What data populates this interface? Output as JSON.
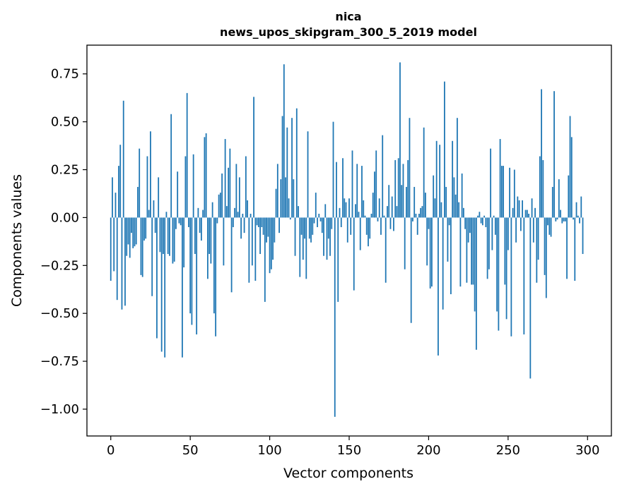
{
  "chart_data": {
    "type": "bar",
    "title_line1": "nica",
    "title_line2": "news_upos_skipgram_300_5_2019 model",
    "xlabel": "Vector components",
    "ylabel": "Components values",
    "xlim": [
      -15,
      315
    ],
    "ylim": [
      -1.14,
      0.9
    ],
    "xticks": [
      0,
      50,
      100,
      150,
      200,
      250,
      300
    ],
    "xtick_labels": [
      "0",
      "50",
      "100",
      "150",
      "200",
      "250",
      "300"
    ],
    "yticks": [
      -1.0,
      -0.75,
      -0.5,
      -0.25,
      0.0,
      0.25,
      0.5,
      0.75
    ],
    "ytick_labels": [
      "−1.00",
      "−0.75",
      "−0.50",
      "−0.25",
      "0.00",
      "0.25",
      "0.50",
      "0.75"
    ],
    "bar_color": "#1f77b4",
    "values": [
      -0.33,
      0.21,
      -0.28,
      0.13,
      -0.43,
      0.27,
      0.38,
      -0.48,
      0.61,
      -0.46,
      -0.2,
      -0.14,
      -0.21,
      -0.08,
      -0.16,
      -0.15,
      -0.14,
      0.16,
      0.36,
      -0.3,
      -0.31,
      -0.12,
      -0.11,
      0.32,
      0.04,
      0.45,
      -0.41,
      0.09,
      -0.08,
      -0.63,
      0.21,
      -0.18,
      -0.7,
      -0.19,
      -0.73,
      0.03,
      -0.19,
      -0.2,
      0.54,
      -0.24,
      -0.23,
      -0.06,
      0.24,
      -0.03,
      -0.04,
      -0.73,
      -0.26,
      0.32,
      0.65,
      -0.05,
      -0.5,
      -0.56,
      0.33,
      -0.19,
      -0.61,
      0.05,
      -0.08,
      -0.12,
      0.04,
      0.42,
      0.44,
      -0.32,
      -0.19,
      -0.24,
      0.08,
      -0.5,
      -0.62,
      -0.03,
      0.12,
      0.13,
      0.23,
      -0.25,
      0.41,
      0.06,
      0.26,
      0.36,
      -0.39,
      -0.05,
      0.05,
      0.28,
      0.03,
      0.21,
      -0.11,
      0.02,
      -0.08,
      0.32,
      0.09,
      -0.34,
      0.02,
      -0.25,
      0.63,
      -0.33,
      -0.04,
      -0.05,
      -0.19,
      -0.05,
      -0.09,
      -0.44,
      -0.13,
      -0.1,
      -0.29,
      -0.27,
      -0.22,
      -0.13,
      0.15,
      0.28,
      -0.08,
      0.2,
      0.53,
      0.8,
      0.21,
      0.47,
      0.1,
      -0.01,
      0.52,
      0.2,
      -0.2,
      0.57,
      0.06,
      -0.31,
      -0.09,
      -0.22,
      -0.11,
      -0.32,
      0.45,
      -0.11,
      -0.13,
      -0.09,
      -0.03,
      0.13,
      -0.05,
      0.02,
      -0.02,
      -0.08,
      -0.2,
      0.07,
      -0.22,
      -0.11,
      -0.2,
      -0.06,
      0.5,
      -1.04,
      0.29,
      -0.44,
      0.05,
      -0.05,
      0.31,
      0.1,
      0.08,
      -0.13,
      0.1,
      -0.09,
      0.35,
      -0.38,
      0.07,
      0.28,
      0.03,
      -0.17,
      0.27,
      0.09,
      0.01,
      -0.09,
      -0.15,
      -0.11,
      0.02,
      0.13,
      0.24,
      0.35,
      -0.02,
      0.1,
      -0.09,
      0.43,
      0.01,
      -0.34,
      0.06,
      0.17,
      -0.06,
      0.11,
      -0.07,
      0.3,
      0.06,
      0.31,
      0.81,
      0.17,
      0.28,
      -0.27,
      0.16,
      0.3,
      0.52,
      -0.55,
      -0.02,
      0.16,
      0.02,
      -0.09,
      0.02,
      0.05,
      0.06,
      0.47,
      0.13,
      -0.25,
      -0.06,
      -0.37,
      -0.36,
      0.22,
      0.1,
      0.4,
      -0.72,
      0.38,
      0.08,
      -0.48,
      0.71,
      0.16,
      -0.23,
      -0.04,
      -0.4,
      0.4,
      0.21,
      0.12,
      0.52,
      0.08,
      -0.36,
      0.23,
      0.05,
      -0.06,
      -0.34,
      -0.13,
      -0.08,
      -0.35,
      -0.35,
      -0.49,
      -0.69,
      0.01,
      0.03,
      -0.03,
      -0.04,
      0.01,
      -0.05,
      -0.32,
      -0.27,
      0.36,
      -0.17,
      0.01,
      -0.09,
      -0.49,
      -0.59,
      0.41,
      0.27,
      0.27,
      -0.35,
      -0.53,
      -0.17,
      0.26,
      -0.62,
      0.05,
      0.25,
      -0.13,
      0.11,
      0.09,
      -0.07,
      0.09,
      -0.61,
      0.04,
      0.04,
      0.02,
      -0.84,
      0.1,
      -0.13,
      0.05,
      -0.34,
      -0.22,
      0.32,
      0.67,
      0.3,
      -0.3,
      -0.42,
      -0.04,
      -0.09,
      -0.1,
      0.16,
      0.66,
      -0.02,
      -0.01,
      0.2,
      0.04,
      -0.03,
      -0.02,
      -0.02,
      -0.32,
      0.22,
      0.53,
      0.42,
      -0.01,
      -0.33,
      0.08,
      0.01,
      -0.03,
      0.11,
      -0.19
    ]
  }
}
